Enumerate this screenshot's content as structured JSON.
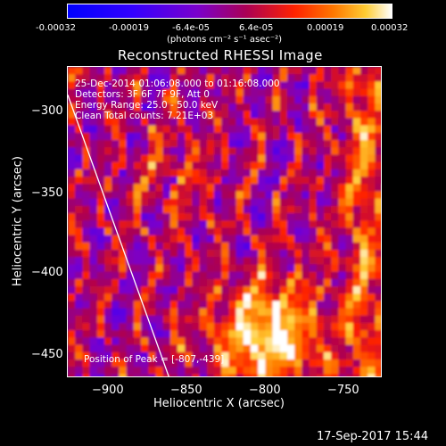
{
  "colorbar": {
    "tick_labels": [
      "-0.00032",
      "-0.00019",
      "-6.4e-05",
      "6.4e-05",
      "0.00019",
      "0.00032"
    ],
    "units": "(photons cm⁻² s⁻¹ asec⁻²)",
    "range": [
      -0.00032,
      0.00032
    ],
    "colormap": [
      "#0000ff",
      "#3300ff",
      "#7a00cc",
      "#aa0055",
      "#ff2200",
      "#ff7700",
      "#ffcc33",
      "#ffffff"
    ]
  },
  "plot": {
    "title": "Reconstructed RHESSI Image",
    "x_label": "Heliocentric X (arcsec)",
    "y_label": "Heliocentric Y (arcsec)",
    "x_ticks": [
      "−900",
      "−850",
      "−800",
      "−750"
    ],
    "y_ticks": [
      "−300",
      "−350",
      "−400",
      "−450"
    ],
    "x_range": [
      -927,
      -738
    ],
    "y_range": [
      -465,
      -276
    ],
    "annotations": {
      "time": "25-Dec-2014 01:06:08.000 to 01:16:08.000",
      "detectors": "Detectors: 3F 6F 7F 9F, Att 0",
      "energy": "Energy Range: 25.0 - 50.0 keV",
      "method": "Clean     Total counts: 7.21E+03"
    },
    "peak_label": "Position of Peak = [-807,-439]",
    "peak": [
      -807,
      -439
    ],
    "limb_line": [
      [
        -927,
        -293
      ],
      [
        -866,
        -465
      ]
    ]
  },
  "footer": {
    "date": "17-Sep-2017 15:44"
  }
}
